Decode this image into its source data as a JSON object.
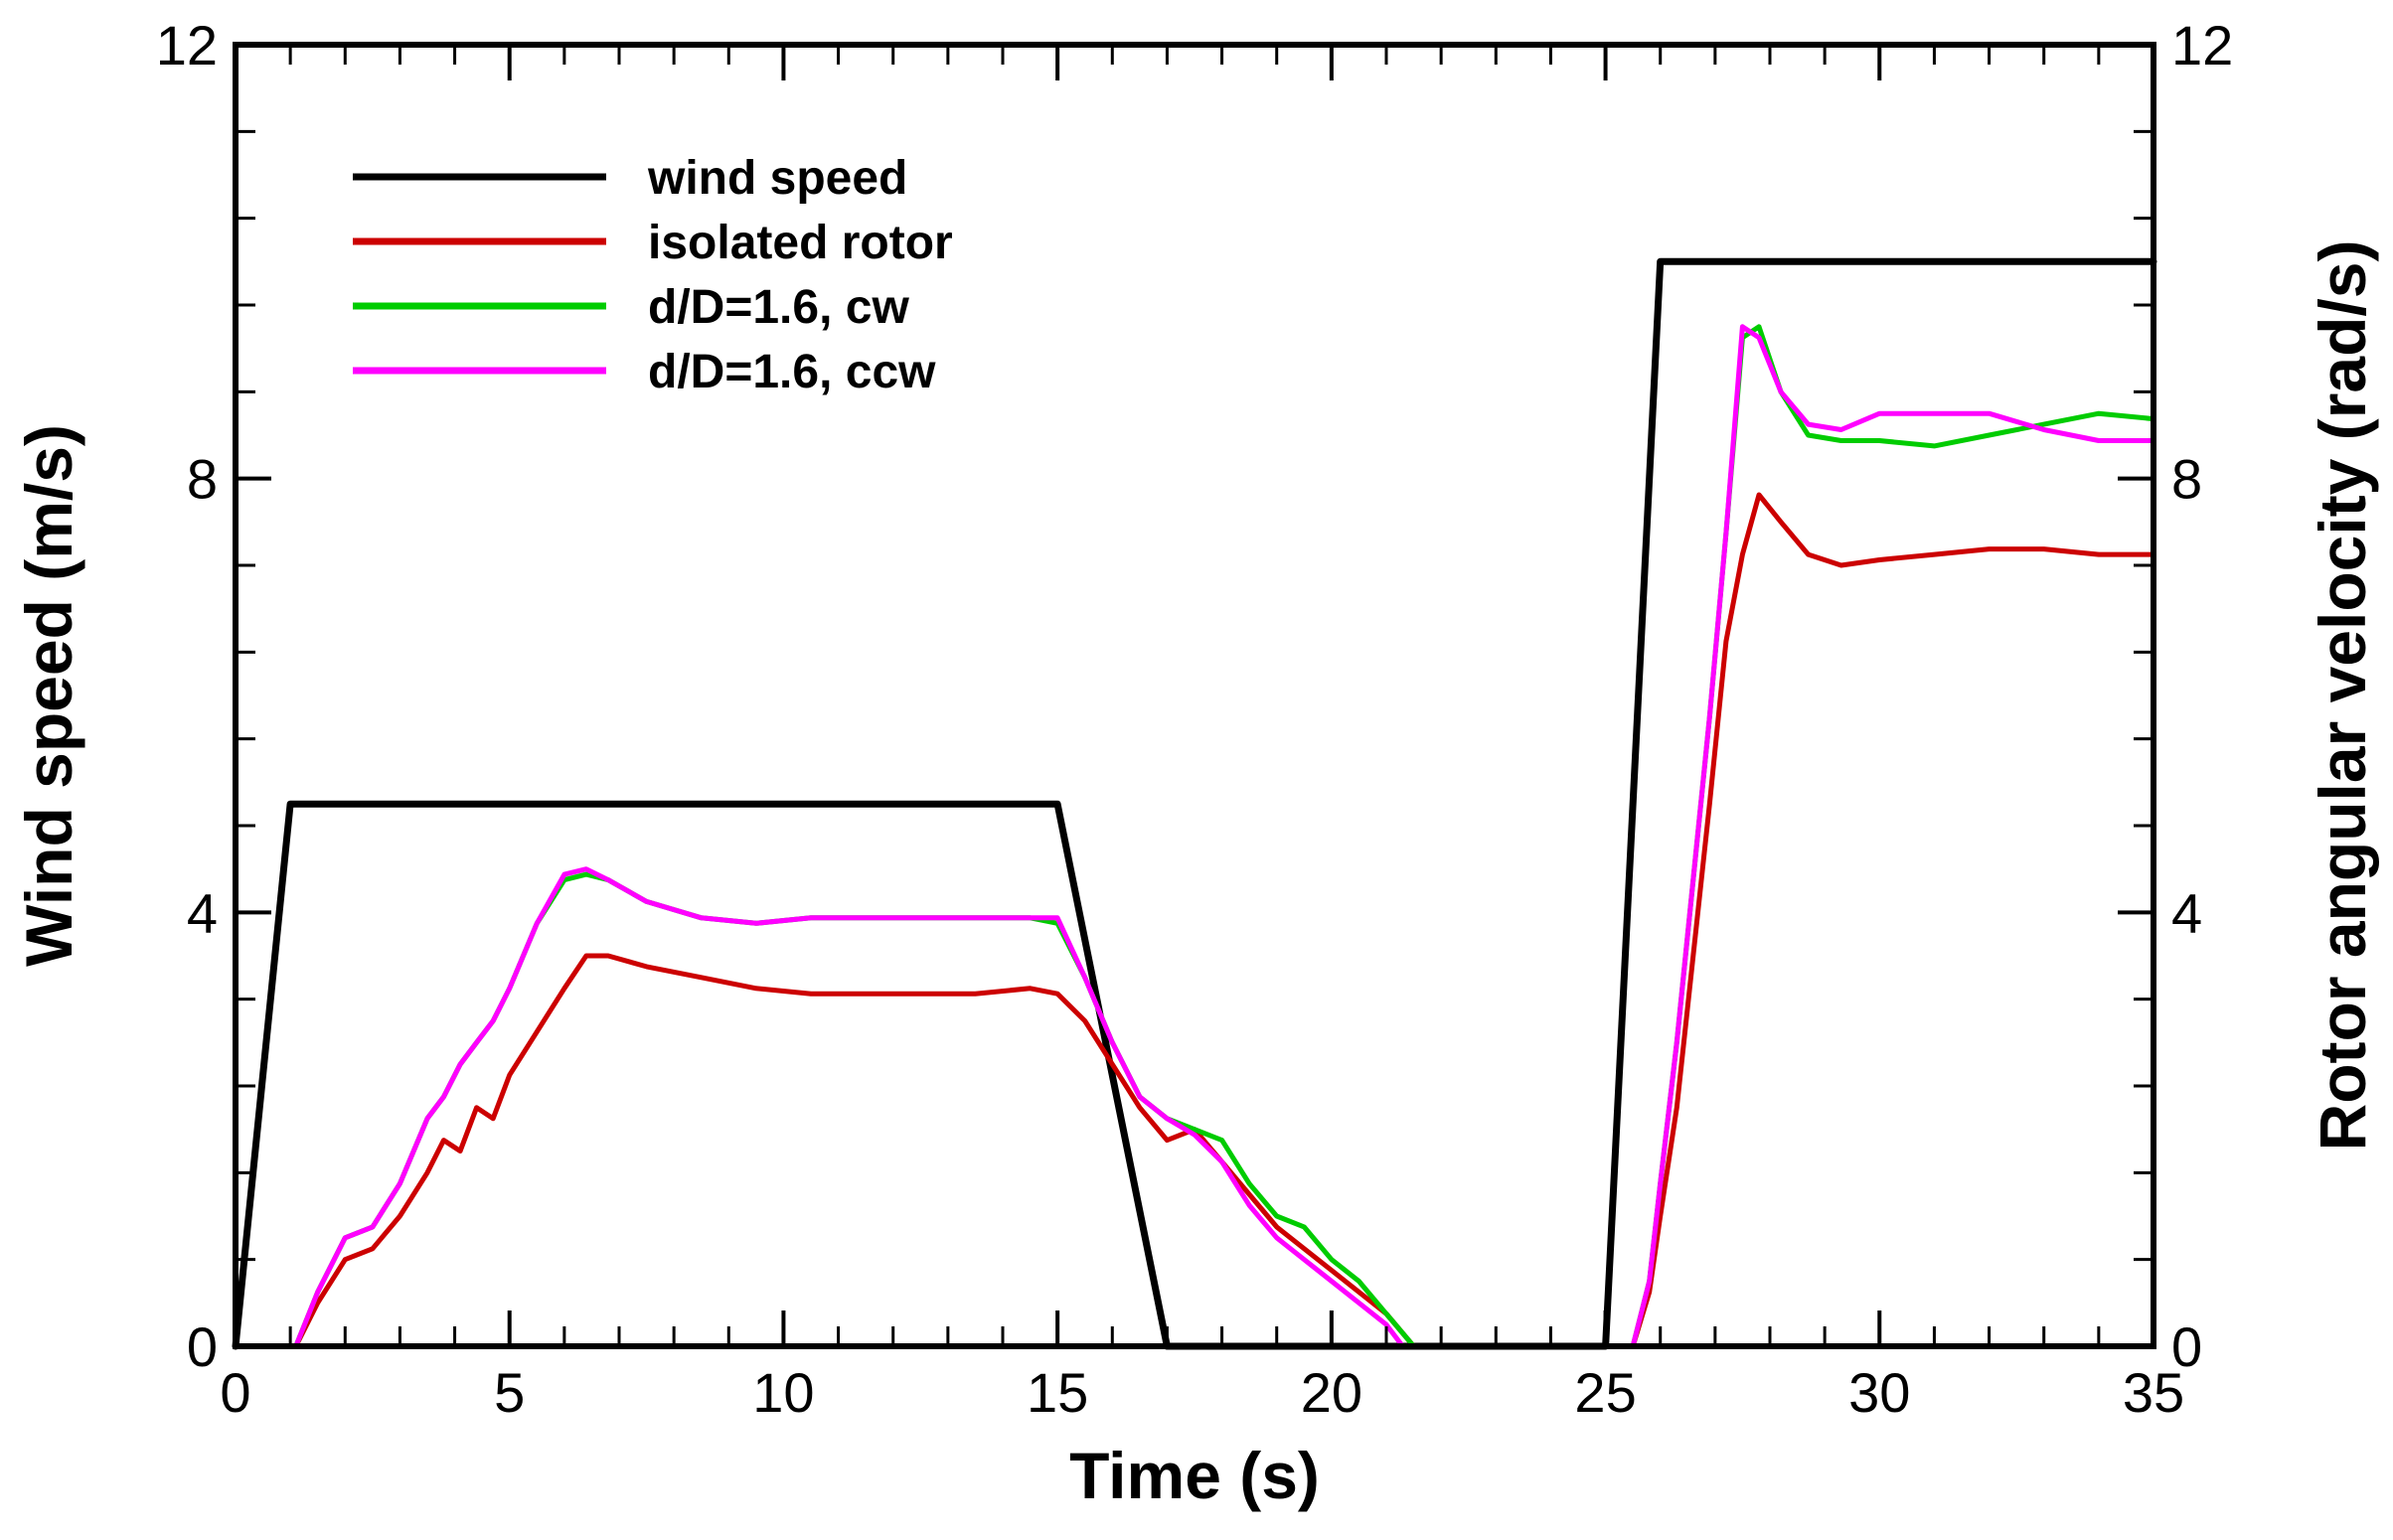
{
  "chart_data": {
    "type": "line",
    "title": "",
    "xlabel": "Time (s)",
    "ylabel": "Wind speed (m/s)",
    "ylabel_right": "Rotor angular velocity (rad/s)",
    "xlim": [
      0,
      35
    ],
    "ylim": [
      0,
      12
    ],
    "ylim_right": [
      0,
      12
    ],
    "xticks": [
      "0",
      "5",
      "10",
      "15",
      "20",
      "25",
      "30",
      "35"
    ],
    "yticks": [
      "0",
      "4",
      "8",
      "12"
    ],
    "yticks_right": [
      "0",
      "4",
      "8",
      "12"
    ],
    "grid": false,
    "legend_position": "top-left",
    "series": [
      {
        "name": "wind speed",
        "color": "#000000",
        "axis": "left",
        "x": [
          0,
          1,
          15,
          17,
          25,
          26,
          35
        ],
        "y": [
          0,
          5,
          5,
          0,
          0,
          10,
          10
        ]
      },
      {
        "name": "isolated rotor",
        "color": "#cc0000",
        "axis": "right",
        "x": [
          0.6,
          1.1,
          1.5,
          2.0,
          2.5,
          3.0,
          3.5,
          3.8,
          4.1,
          4.4,
          4.7,
          5.0,
          5.5,
          6.0,
          6.4,
          6.8,
          7.5,
          8.5,
          9.5,
          10.5,
          11.5,
          12.5,
          13.5,
          14.5,
          15.0,
          15.5,
          16.0,
          16.5,
          17.0,
          17.5,
          18.0,
          19.0,
          20.0,
          21.0,
          21.5,
          25.0,
          25.5,
          25.8,
          26.0,
          26.3,
          26.6,
          26.9,
          27.2,
          27.5,
          27.8,
          28.2,
          28.7,
          29.3,
          30.0,
          31.0,
          32.0,
          33.0,
          34.0,
          35.0
        ],
        "y": [
          0,
          0,
          0.4,
          0.8,
          0.9,
          1.2,
          1.6,
          1.9,
          1.8,
          2.2,
          2.1,
          2.5,
          2.9,
          3.3,
          3.6,
          3.6,
          3.5,
          3.4,
          3.3,
          3.25,
          3.25,
          3.25,
          3.25,
          3.3,
          3.25,
          3.0,
          2.6,
          2.2,
          1.9,
          2.0,
          1.7,
          1.1,
          0.7,
          0.3,
          0,
          0,
          0,
          0.5,
          1.2,
          2.2,
          3.6,
          5.0,
          6.5,
          7.3,
          7.85,
          7.6,
          7.3,
          7.2,
          7.25,
          7.3,
          7.35,
          7.35,
          7.3,
          7.3
        ]
      },
      {
        "name": "d/D=1.6, cw",
        "color": "#00cc00",
        "axis": "right",
        "x": [
          0.6,
          1.1,
          1.5,
          2.0,
          2.5,
          3.0,
          3.5,
          3.8,
          4.1,
          4.4,
          4.7,
          5.0,
          5.5,
          6.0,
          6.4,
          6.8,
          7.5,
          8.5,
          9.5,
          10.5,
          11.5,
          12.5,
          13.5,
          14.5,
          15.0,
          15.5,
          16.0,
          16.5,
          17.0,
          17.5,
          18.0,
          18.5,
          19.0,
          19.5,
          20.0,
          20.5,
          21.0,
          21.5,
          25.0,
          25.5,
          25.8,
          26.0,
          26.3,
          26.6,
          26.9,
          27.2,
          27.5,
          27.8,
          28.2,
          28.7,
          29.3,
          30.0,
          31.0,
          32.0,
          33.0,
          34.0,
          35.0
        ],
        "y": [
          0,
          0,
          0.5,
          1.0,
          1.1,
          1.5,
          2.1,
          2.3,
          2.6,
          2.8,
          3.0,
          3.3,
          3.9,
          4.3,
          4.35,
          4.3,
          4.1,
          3.95,
          3.9,
          3.95,
          3.95,
          3.95,
          3.95,
          3.95,
          3.9,
          3.4,
          2.8,
          2.3,
          2.1,
          2.0,
          1.9,
          1.5,
          1.2,
          1.1,
          0.8,
          0.6,
          0.3,
          0,
          0,
          0,
          0.6,
          1.5,
          2.8,
          4.3,
          5.8,
          7.5,
          9.3,
          9.4,
          8.8,
          8.4,
          8.35,
          8.35,
          8.3,
          8.4,
          8.5,
          8.6,
          8.55
        ]
      },
      {
        "name": "d/D=1.6, ccw",
        "color": "#ff00ff",
        "axis": "right",
        "x": [
          0.6,
          1.1,
          1.5,
          2.0,
          2.5,
          3.0,
          3.5,
          3.8,
          4.1,
          4.4,
          4.7,
          5.0,
          5.5,
          6.0,
          6.4,
          6.8,
          7.5,
          8.5,
          9.5,
          10.5,
          11.5,
          12.5,
          13.5,
          14.5,
          15.0,
          15.5,
          16.0,
          16.5,
          17.0,
          17.5,
          18.0,
          18.5,
          19.0,
          19.5,
          20.0,
          20.5,
          21.0,
          21.3,
          25.0,
          25.5,
          25.8,
          26.0,
          26.3,
          26.6,
          26.9,
          27.2,
          27.5,
          27.8,
          28.2,
          28.7,
          29.3,
          30.0,
          31.0,
          32.0,
          33.0,
          34.0,
          35.0
        ],
        "y": [
          0,
          0,
          0.5,
          1.0,
          1.1,
          1.5,
          2.1,
          2.3,
          2.6,
          2.8,
          3.0,
          3.3,
          3.9,
          4.35,
          4.4,
          4.3,
          4.1,
          3.95,
          3.9,
          3.95,
          3.95,
          3.95,
          3.95,
          3.95,
          3.95,
          3.4,
          2.8,
          2.3,
          2.1,
          1.95,
          1.7,
          1.3,
          1.0,
          0.8,
          0.6,
          0.4,
          0.2,
          0,
          0,
          0,
          0.6,
          1.5,
          2.8,
          4.3,
          5.8,
          7.5,
          9.4,
          9.3,
          8.8,
          8.5,
          8.45,
          8.6,
          8.6,
          8.6,
          8.45,
          8.35,
          8.35
        ]
      }
    ]
  }
}
